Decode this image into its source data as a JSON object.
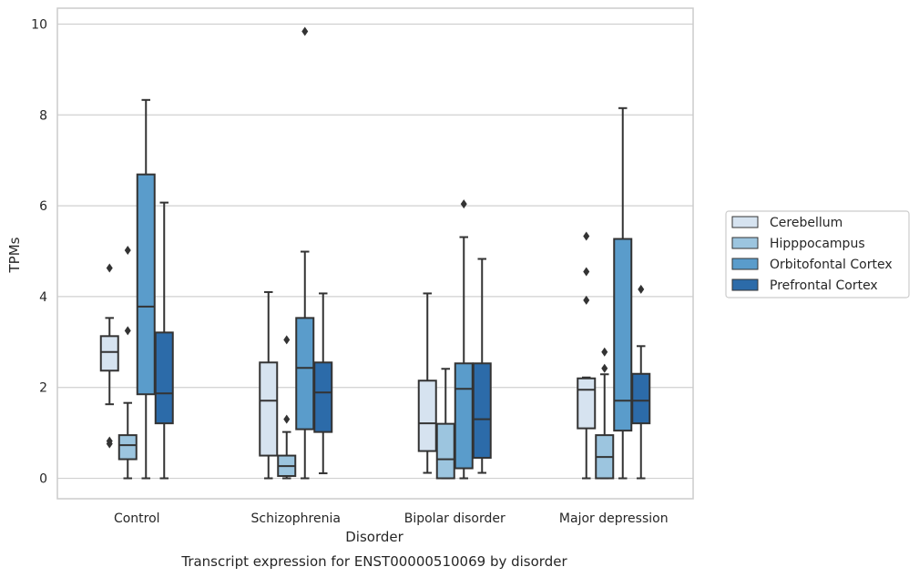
{
  "chart_data": {
    "type": "boxplot",
    "xlabel": "Disorder",
    "ylabel": "TPMs",
    "caption": "Transcript expression for ENST00000510069 by disorder",
    "ylim": [
      -0.45,
      10.35
    ],
    "yticks": [
      "0",
      "2",
      "4",
      "6",
      "8",
      "10"
    ],
    "ytick_values": [
      0,
      2,
      4,
      6,
      8,
      10
    ],
    "grid": true,
    "legend_position": "right",
    "categories": [
      "Control",
      "Schizophrenia",
      "Bipolar disorder",
      "Major depression"
    ],
    "series": [
      {
        "name": "Cerebellum",
        "color": "#d6e3f0",
        "boxes": [
          {
            "whislo": 1.63,
            "q1": 2.37,
            "med": 2.78,
            "q3": 3.13,
            "whishi": 3.53,
            "fliers": [
              4.63,
              0.82,
              0.76
            ]
          },
          {
            "whislo": 0.0,
            "q1": 0.5,
            "med": 1.71,
            "q3": 2.55,
            "whishi": 4.1,
            "fliers": []
          },
          {
            "whislo": 0.12,
            "q1": 0.6,
            "med": 1.21,
            "q3": 2.15,
            "whishi": 4.07,
            "fliers": []
          },
          {
            "whislo": 0.0,
            "q1": 1.1,
            "med": 1.95,
            "q3": 2.2,
            "whishi": 2.22,
            "fliers": [
              5.33,
              4.55,
              3.92
            ]
          }
        ]
      },
      {
        "name": "Hipppocampus",
        "color": "#9cc5df",
        "boxes": [
          {
            "whislo": 0.0,
            "q1": 0.42,
            "med": 0.73,
            "q3": 0.95,
            "whishi": 1.66,
            "fliers": [
              5.02,
              3.25
            ]
          },
          {
            "whislo": 0.0,
            "q1": 0.05,
            "med": 0.27,
            "q3": 0.5,
            "whishi": 1.02,
            "fliers": [
              3.05,
              1.3
            ]
          },
          {
            "whislo": 0.0,
            "q1": 0.0,
            "med": 0.42,
            "q3": 1.2,
            "whishi": 2.41,
            "fliers": []
          },
          {
            "whislo": 0.0,
            "q1": 0.0,
            "med": 0.47,
            "q3": 0.95,
            "whishi": 2.29,
            "fliers": [
              2.78,
              2.42
            ]
          }
        ]
      },
      {
        "name": "Orbitofontal Cortex",
        "color": "#5a9ccb",
        "boxes": [
          {
            "whislo": 0.0,
            "q1": 1.85,
            "med": 3.78,
            "q3": 6.69,
            "whishi": 8.33,
            "fliers": []
          },
          {
            "whislo": 0.0,
            "q1": 1.08,
            "med": 2.43,
            "q3": 3.53,
            "whishi": 4.99,
            "fliers": [
              9.84
            ]
          },
          {
            "whislo": 0.0,
            "q1": 0.22,
            "med": 1.97,
            "q3": 2.53,
            "whishi": 5.31,
            "fliers": [
              6.04
            ]
          },
          {
            "whislo": 0.0,
            "q1": 1.05,
            "med": 1.71,
            "q3": 5.27,
            "whishi": 8.15,
            "fliers": []
          }
        ]
      },
      {
        "name": "Prefrontal Cortex",
        "color": "#2c6ba9",
        "boxes": [
          {
            "whislo": 0.0,
            "q1": 1.21,
            "med": 1.87,
            "q3": 3.21,
            "whishi": 6.07,
            "fliers": []
          },
          {
            "whislo": 0.11,
            "q1": 1.02,
            "med": 1.89,
            "q3": 2.55,
            "whishi": 4.07,
            "fliers": []
          },
          {
            "whislo": 0.12,
            "q1": 0.45,
            "med": 1.3,
            "q3": 2.53,
            "whishi": 4.83,
            "fliers": []
          },
          {
            "whislo": 0.0,
            "q1": 1.21,
            "med": 1.71,
            "q3": 2.3,
            "whishi": 2.91,
            "fliers": [
              4.16
            ]
          }
        ]
      }
    ]
  }
}
